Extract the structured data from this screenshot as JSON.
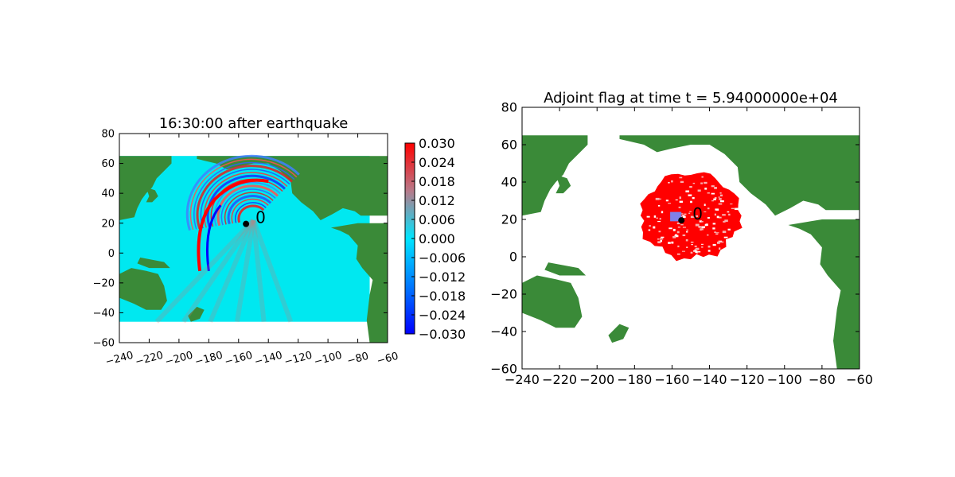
{
  "figure": {
    "background": "#ffffff"
  },
  "chart_data": [
    {
      "type": "heatmap",
      "title": "16:30:00 after earthquake",
      "xlabel": "",
      "ylabel": "",
      "xlim": [
        -240,
        -60
      ],
      "ylim": [
        -60,
        80
      ],
      "xticks": [
        -240,
        -220,
        -200,
        -180,
        -160,
        -140,
        -120,
        -100,
        -80,
        -60
      ],
      "xtick_labels": [
        "−240",
        "−220",
        "−200",
        "−180",
        "−160",
        "−140",
        "−120",
        "−100",
        "−80",
        "−60"
      ],
      "yticks": [
        -60,
        -40,
        -20,
        0,
        20,
        40,
        60,
        80
      ],
      "ytick_labels": [
        "−60",
        "−40",
        "−20",
        "0",
        "20",
        "40",
        "60",
        "80"
      ],
      "xtick_rotation_deg": 15,
      "data_extent": {
        "x": [
          -240,
          -72
        ],
        "y": [
          -46,
          65
        ]
      },
      "background_value_color": "#00e8f0",
      "land_color": "#3a8a38",
      "colorbar": {
        "vmin": -0.03,
        "vmax": 0.03,
        "colors": [
          "#0000ff",
          "#00e5ff",
          "#ff0000"
        ],
        "ticks": [
          0.03,
          0.024,
          0.018,
          0.012,
          0.006,
          0.0,
          -0.006,
          -0.012,
          -0.018,
          -0.024,
          -0.03
        ],
        "tick_labels": [
          "0.030",
          "0.024",
          "0.018",
          "0.012",
          "0.006",
          "0.000",
          "−0.006",
          "−0.012",
          "−0.018",
          "−0.024",
          "−0.030"
        ]
      },
      "gauge": {
        "x": -155,
        "y": 19.5,
        "label": "0"
      },
      "grid": false
    },
    {
      "type": "heatmap",
      "title": "Adjoint flag at time t = 5.94000000e+04",
      "xlabel": "",
      "ylabel": "",
      "xlim": [
        -240,
        -60
      ],
      "ylim": [
        -60,
        80
      ],
      "xticks": [
        -240,
        -220,
        -200,
        -180,
        -160,
        -140,
        -120,
        -100,
        -80,
        -60
      ],
      "xtick_labels": [
        "−240",
        "−220",
        "−200",
        "−180",
        "−160",
        "−140",
        "−120",
        "−100",
        "−80",
        "−60"
      ],
      "yticks": [
        -60,
        -40,
        -20,
        0,
        20,
        40,
        60,
        80
      ],
      "ytick_labels": [
        "−60",
        "−40",
        "−20",
        "0",
        "20",
        "40",
        "60",
        "80"
      ],
      "flag_color": "#ff0000",
      "flag_region": {
        "center_x": -150,
        "center_y": 22,
        "radius_x": 26,
        "radius_y": 23
      },
      "source_box": {
        "x": [
          -161,
          -155
        ],
        "y": [
          19,
          24
        ],
        "color": "#8080e8"
      },
      "land_color": "#3a8a38",
      "gauge": {
        "x": -155,
        "y": 19.5,
        "label": "0"
      },
      "grid": false
    }
  ]
}
